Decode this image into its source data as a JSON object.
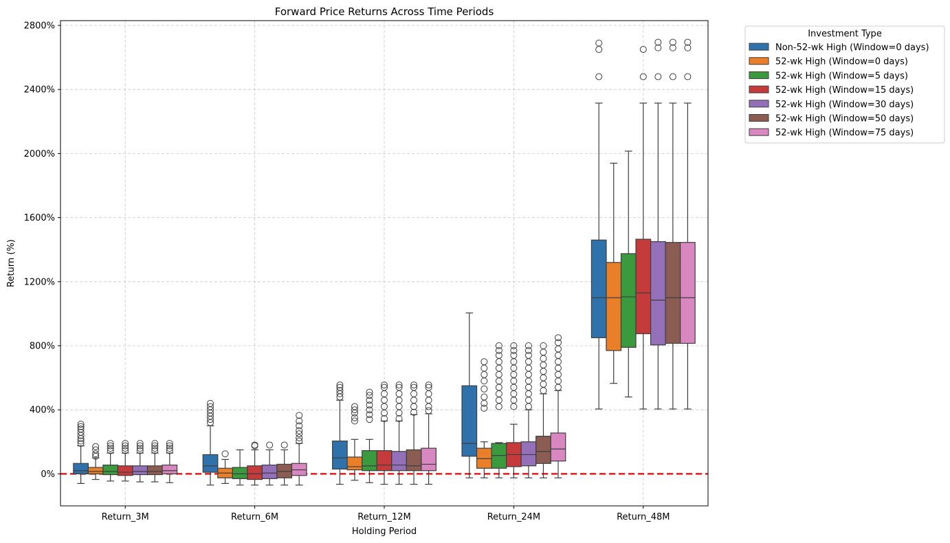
{
  "chart_data": {
    "type": "box",
    "title": "Forward Price Returns Across Time Periods",
    "xlabel": "Holding Period",
    "ylabel": "Return (%)",
    "categories": [
      "Return_3M",
      "Return_6M",
      "Return_12M",
      "Return_24M",
      "Return_48M"
    ],
    "ylim": [
      -200,
      2830
    ],
    "yticks": [
      0,
      400,
      800,
      1200,
      1600,
      2000,
      2400,
      2800
    ],
    "ytick_labels": [
      "0%",
      "400%",
      "800%",
      "1200%",
      "1600%",
      "2000%",
      "2400%",
      "2800%"
    ],
    "grid": true,
    "reference_line": {
      "y": 0,
      "color": "#e8191b",
      "style": "dashed"
    },
    "legend": {
      "title": "Investment Type",
      "placement": "outside-top-right"
    },
    "series": [
      {
        "name": "Non-52-wk High (Window=0 days)",
        "color": "#2f72ab",
        "boxes": [
          {
            "whislo": -60,
            "q1": 0,
            "med": 20,
            "q3": 65,
            "whishi": 175,
            "fliers": [
              190,
              205,
              220,
              240,
              260,
              280,
              295,
              310
            ]
          },
          {
            "whislo": -70,
            "q1": 10,
            "med": 50,
            "q3": 120,
            "whishi": 300,
            "fliers": [
              320,
              340,
              360,
              380,
              400,
              420,
              440
            ]
          },
          {
            "whislo": -65,
            "q1": 30,
            "med": 100,
            "q3": 205,
            "whishi": 460,
            "fliers": [
              480,
              500,
              520,
              540,
              555
            ]
          },
          {
            "whislo": -25,
            "q1": 110,
            "med": 190,
            "q3": 550,
            "whishi": 1005,
            "fliers": []
          },
          {
            "whislo": 405,
            "q1": 850,
            "med": 1100,
            "q3": 1460,
            "whishi": 2315,
            "fliers": [
              2480,
              2650,
              2690
            ]
          }
        ]
      },
      {
        "name": "52-wk High (Window=0 days)",
        "color": "#e97f28",
        "boxes": [
          {
            "whislo": -35,
            "q1": 0,
            "med": 15,
            "q3": 40,
            "whishi": 100,
            "fliers": [
              110,
              125,
              150,
              170
            ]
          },
          {
            "whislo": -60,
            "q1": -25,
            "med": 5,
            "q3": 35,
            "whishi": 90,
            "fliers": [
              125
            ]
          },
          {
            "whislo": -40,
            "q1": 25,
            "med": 45,
            "q3": 105,
            "whishi": 215,
            "fliers": [
              330,
              350,
              380,
              400,
              420
            ]
          },
          {
            "whislo": -25,
            "q1": 35,
            "med": 95,
            "q3": 160,
            "whishi": 200,
            "fliers": [
              410,
              440,
              480,
              530,
              580,
              620,
              660,
              700
            ]
          },
          {
            "whislo": 565,
            "q1": 770,
            "med": 1100,
            "q3": 1320,
            "whishi": 1940,
            "fliers": []
          }
        ]
      },
      {
        "name": "52-wk High (Window=5 days)",
        "color": "#3b9a3e",
        "boxes": [
          {
            "whislo": -45,
            "q1": -5,
            "med": 15,
            "q3": 55,
            "whishi": 130,
            "fliers": [
              145,
              160,
              175,
              190
            ]
          },
          {
            "whislo": -70,
            "q1": -30,
            "med": 0,
            "q3": 40,
            "whishi": 150,
            "fliers": []
          },
          {
            "whislo": -55,
            "q1": 20,
            "med": 50,
            "q3": 145,
            "whishi": 215,
            "fliers": [
              340,
              370,
              400,
              430,
              460,
              490,
              510
            ]
          },
          {
            "whislo": -25,
            "q1": 35,
            "med": 115,
            "q3": 190,
            "whishi": 195,
            "fliers": [
              420,
              460,
              500,
              540,
              580,
              620,
              660,
              700,
              740,
              770,
              800
            ]
          },
          {
            "whislo": 480,
            "q1": 790,
            "med": 1105,
            "q3": 1375,
            "whishi": 2015,
            "fliers": []
          }
        ]
      },
      {
        "name": "52-wk High (Window=15 days)",
        "color": "#c53a3b",
        "boxes": [
          {
            "whislo": -45,
            "q1": -10,
            "med": 10,
            "q3": 50,
            "whishi": 130,
            "fliers": [
              145,
              160,
              175,
              190
            ]
          },
          {
            "whislo": -70,
            "q1": -35,
            "med": 0,
            "q3": 50,
            "whishi": 150,
            "fliers": [
              175,
              180
            ]
          },
          {
            "whislo": -65,
            "q1": 20,
            "med": 55,
            "q3": 145,
            "whishi": 330,
            "fliers": [
              345,
              380,
              420,
              460,
              500,
              540,
              555
            ]
          },
          {
            "whislo": -25,
            "q1": 45,
            "med": 120,
            "q3": 195,
            "whishi": 310,
            "fliers": [
              420,
              460,
              500,
              540,
              580,
              620,
              660,
              700,
              740,
              770,
              800
            ]
          },
          {
            "whislo": 405,
            "q1": 875,
            "med": 1130,
            "q3": 1465,
            "whishi": 2315,
            "fliers": [
              2480,
              2650
            ]
          }
        ]
      },
      {
        "name": "52-wk High (Window=30 days)",
        "color": "#9470b8",
        "boxes": [
          {
            "whislo": -50,
            "q1": -5,
            "med": 15,
            "q3": 50,
            "whishi": 130,
            "fliers": [
              145,
              160,
              175,
              190
            ]
          },
          {
            "whislo": -70,
            "q1": -30,
            "med": 5,
            "q3": 55,
            "whishi": 150,
            "fliers": [
              180
            ]
          },
          {
            "whislo": -65,
            "q1": 20,
            "med": 55,
            "q3": 140,
            "whishi": 330,
            "fliers": [
              345,
              380,
              420,
              460,
              500,
              540,
              555
            ]
          },
          {
            "whislo": -25,
            "q1": 50,
            "med": 120,
            "q3": 200,
            "whishi": 400,
            "fliers": [
              420,
              460,
              500,
              540,
              580,
              620,
              660,
              700,
              740,
              770,
              800
            ]
          },
          {
            "whislo": 405,
            "q1": 805,
            "med": 1085,
            "q3": 1450,
            "whishi": 2315,
            "fliers": [
              2480,
              2660,
              2695
            ]
          }
        ]
      },
      {
        "name": "52-wk High (Window=50 days)",
        "color": "#8b5d52",
        "boxes": [
          {
            "whislo": -50,
            "q1": -5,
            "med": 15,
            "q3": 50,
            "whishi": 130,
            "fliers": [
              145,
              160,
              175,
              190
            ]
          },
          {
            "whislo": -70,
            "q1": -25,
            "med": 15,
            "q3": 60,
            "whishi": 150,
            "fliers": [
              180
            ]
          },
          {
            "whislo": -65,
            "q1": 20,
            "med": 50,
            "q3": 150,
            "whishi": 370,
            "fliers": [
              385,
              420,
              460,
              500,
              540,
              555
            ]
          },
          {
            "whislo": -25,
            "q1": 65,
            "med": 140,
            "q3": 235,
            "whishi": 500,
            "fliers": [
              520,
              560,
              600,
              640,
              680,
              720,
              760,
              800
            ]
          },
          {
            "whislo": 405,
            "q1": 815,
            "med": 1100,
            "q3": 1445,
            "whishi": 2315,
            "fliers": [
              2480,
              2660,
              2695
            ]
          }
        ]
      },
      {
        "name": "52-wk High (Window=75 days)",
        "color": "#d987c0",
        "boxes": [
          {
            "whislo": -55,
            "q1": 0,
            "med": 20,
            "q3": 55,
            "whishi": 130,
            "fliers": [
              145,
              160,
              175,
              190
            ]
          },
          {
            "whislo": -70,
            "q1": -10,
            "med": 25,
            "q3": 65,
            "whishi": 190,
            "fliers": [
              205,
              225,
              250,
              270,
              300,
              330,
              365
            ]
          },
          {
            "whislo": -65,
            "q1": 20,
            "med": 60,
            "q3": 160,
            "whishi": 375,
            "fliers": [
              395,
              420,
              460,
              500,
              540,
              555
            ]
          },
          {
            "whislo": -25,
            "q1": 80,
            "med": 155,
            "q3": 255,
            "whishi": 520,
            "fliers": [
              540,
              580,
              620,
              660,
              700,
              740,
              780,
              820,
              850
            ]
          },
          {
            "whislo": 405,
            "q1": 815,
            "med": 1100,
            "q3": 1445,
            "whishi": 2315,
            "fliers": [
              2480,
              2660,
              2695
            ]
          }
        ]
      }
    ]
  }
}
